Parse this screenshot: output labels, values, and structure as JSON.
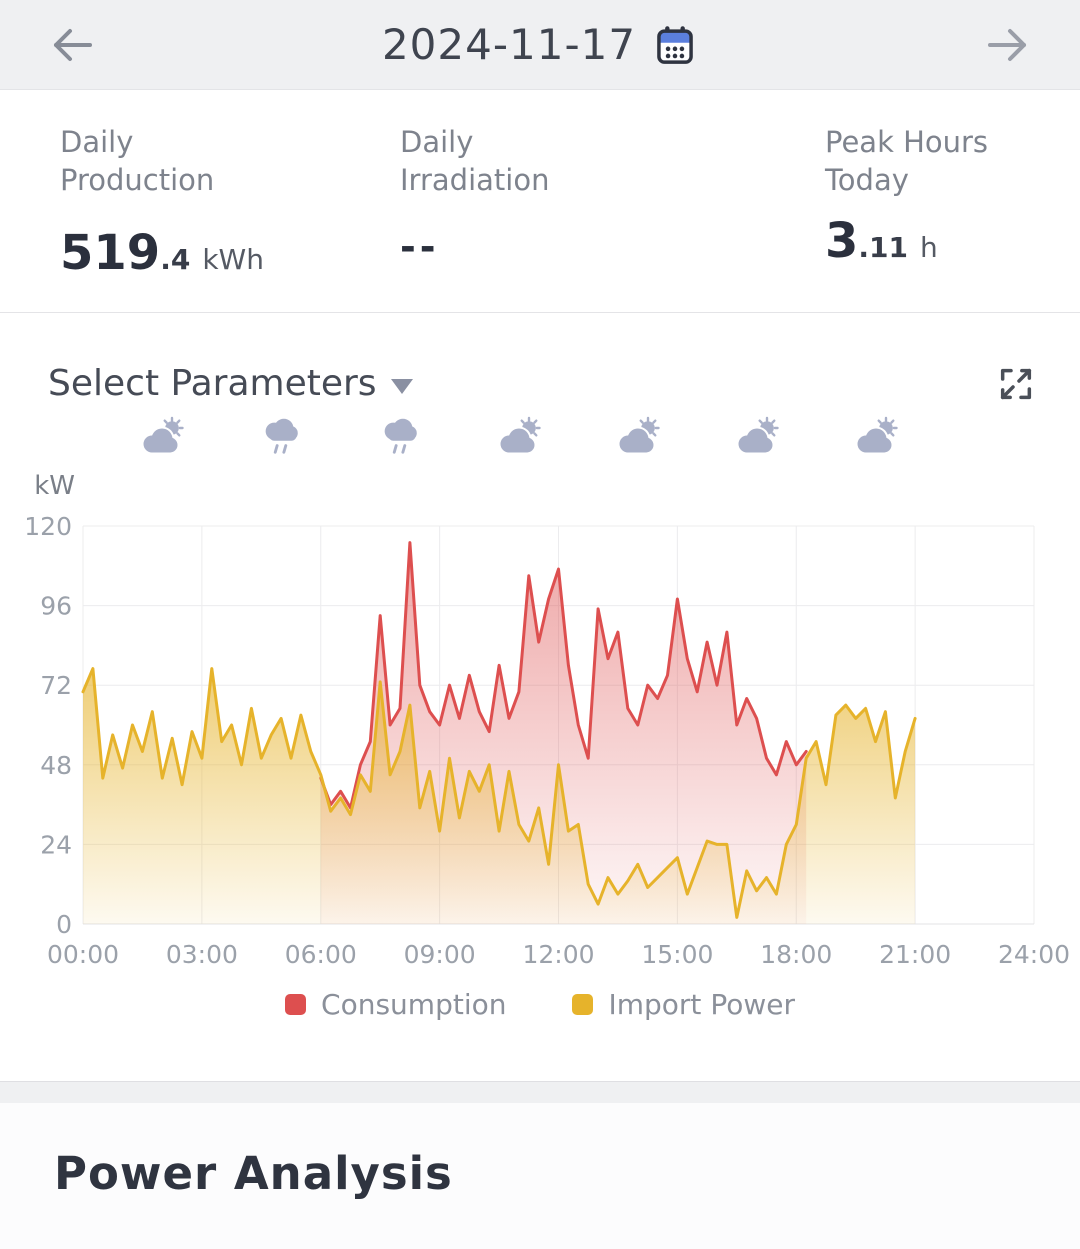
{
  "header": {
    "date": "2024-11-17",
    "back_icon": "arrow-left",
    "forward_icon": "arrow-right",
    "calendar_icon_color": "#5b7fdd"
  },
  "stats": [
    {
      "label": "Daily Production",
      "value": "519",
      "sub": ".4",
      "unit": "kWh"
    },
    {
      "label": "Daily Irradiation",
      "value": "--",
      "sub": "",
      "unit": ""
    },
    {
      "label": "Peak Hours Today",
      "value": "3",
      "sub": ".11",
      "unit": "h"
    }
  ],
  "chart_section": {
    "select_label": "Select Parameters",
    "weather_icon_color": "#a9b0c8",
    "weather": [
      {
        "type": "cloud-sun",
        "hour": 2
      },
      {
        "type": "cloud-rain",
        "hour": 5
      },
      {
        "type": "cloud-rain",
        "hour": 8
      },
      {
        "type": "cloud-sun",
        "hour": 11
      },
      {
        "type": "cloud-sun",
        "hour": 14
      },
      {
        "type": "cloud-sun",
        "hour": 17
      },
      {
        "type": "cloud-sun",
        "hour": 20
      }
    ]
  },
  "chart_data": {
    "type": "area",
    "title": "",
    "ylabel": "kW",
    "xlabel": "",
    "ylim": [
      0,
      120
    ],
    "yticks": [
      0,
      24,
      48,
      72,
      96,
      120
    ],
    "xlim": [
      0,
      24
    ],
    "xticks": [
      0,
      3,
      6,
      9,
      12,
      15,
      18,
      21,
      24
    ],
    "xtick_labels": [
      "00:00",
      "03:00",
      "06:00",
      "09:00",
      "12:00",
      "15:00",
      "18:00",
      "21:00",
      "24:00"
    ],
    "grid": true,
    "legend_position": "bottom",
    "series": [
      {
        "name": "Consumption",
        "color": "#dd4f4f",
        "x": [
          6,
          6.25,
          6.5,
          6.75,
          7,
          7.25,
          7.5,
          7.75,
          8,
          8.25,
          8.5,
          8.75,
          9,
          9.25,
          9.5,
          9.75,
          10,
          10.25,
          10.5,
          10.75,
          11,
          11.25,
          11.5,
          11.75,
          12,
          12.25,
          12.5,
          12.75,
          13,
          13.25,
          13.5,
          13.75,
          14,
          14.25,
          14.5,
          14.75,
          15,
          15.25,
          15.5,
          15.75,
          16,
          16.25,
          16.5,
          16.75,
          17,
          17.25,
          17.5,
          17.75,
          18,
          18.25
        ],
        "values": [
          44,
          36,
          40,
          35,
          48,
          55,
          93,
          60,
          65,
          115,
          72,
          64,
          60,
          72,
          62,
          75,
          64,
          58,
          78,
          62,
          70,
          105,
          85,
          98,
          107,
          78,
          60,
          50,
          95,
          80,
          88,
          65,
          60,
          72,
          68,
          75,
          98,
          80,
          70,
          85,
          72,
          88,
          60,
          68,
          62,
          50,
          45,
          55,
          48,
          52
        ]
      },
      {
        "name": "Import Power",
        "color": "#e6b32b",
        "x": [
          0,
          0.25,
          0.5,
          0.75,
          1,
          1.25,
          1.5,
          1.75,
          2,
          2.25,
          2.5,
          2.75,
          3,
          3.25,
          3.5,
          3.75,
          4,
          4.25,
          4.5,
          4.75,
          5,
          5.25,
          5.5,
          5.75,
          6,
          6.25,
          6.5,
          6.75,
          7,
          7.25,
          7.5,
          7.75,
          8,
          8.25,
          8.5,
          8.75,
          9,
          9.25,
          9.5,
          9.75,
          10,
          10.25,
          10.5,
          10.75,
          11,
          11.25,
          11.5,
          11.75,
          12,
          12.25,
          12.5,
          12.75,
          13,
          13.25,
          13.5,
          13.75,
          14,
          14.25,
          14.5,
          14.75,
          15,
          15.25,
          15.5,
          15.75,
          16,
          16.25,
          16.5,
          16.75,
          17,
          17.25,
          17.5,
          17.75,
          18,
          18.25,
          18.5,
          18.75,
          19,
          19.25,
          19.5,
          19.75,
          20,
          20.25,
          20.5,
          20.75,
          21
        ],
        "values": [
          70,
          77,
          44,
          57,
          47,
          60,
          52,
          64,
          44,
          56,
          42,
          58,
          50,
          77,
          55,
          60,
          48,
          65,
          50,
          57,
          62,
          50,
          63,
          52,
          45,
          34,
          38,
          33,
          45,
          40,
          73,
          45,
          52,
          66,
          35,
          46,
          28,
          50,
          32,
          46,
          40,
          48,
          28,
          46,
          30,
          25,
          35,
          18,
          48,
          28,
          30,
          12,
          6,
          14,
          9,
          13,
          18,
          11,
          14,
          17,
          20,
          9,
          17,
          25,
          24,
          24,
          2,
          16,
          10,
          14,
          9,
          24,
          30,
          50,
          55,
          42,
          63,
          66,
          62,
          65,
          55,
          64,
          38,
          52,
          62
        ]
      }
    ]
  },
  "footer": {
    "title": "Power Analysis"
  }
}
